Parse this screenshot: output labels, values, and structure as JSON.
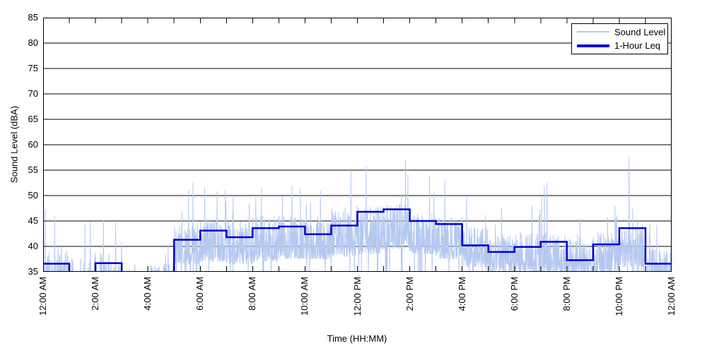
{
  "colors": {
    "trace": "#b5c8f0",
    "leq": "#0000d9",
    "axis": "#000000",
    "background": "#ffffff"
  },
  "legend": {
    "items": [
      {
        "label": "Sound Level",
        "swatch": "thin-light-blue-line"
      },
      {
        "label": "1-Hour Leq",
        "swatch": "thick-blue-line"
      }
    ]
  },
  "chart_data": {
    "type": "line",
    "title": "",
    "xlabel": "Time (HH:MM)",
    "ylabel": "Sound Level (dBA)",
    "ylim": [
      35,
      85
    ],
    "y_ticks": [
      35,
      40,
      45,
      50,
      55,
      60,
      65,
      70,
      75,
      80,
      85
    ],
    "x_range_hours": [
      0,
      24
    ],
    "x_minor_tick_every_hours": 1,
    "x_tick_hours": [
      0,
      2,
      4,
      6,
      8,
      10,
      12,
      14,
      16,
      18,
      20,
      22,
      24
    ],
    "x_tick_labels": [
      "12:00 AM",
      "2:00 AM",
      "4:00 AM",
      "6:00 AM",
      "8:00 AM",
      "10:00 AM",
      "12:00 PM",
      "2:00 PM",
      "4:00 PM",
      "6:00 PM",
      "8:00 PM",
      "10:00 PM",
      "12:00 AM"
    ],
    "grid": "horizontal-solid",
    "legend_position": "top-right",
    "series": [
      {
        "name": "Sound Level",
        "style": "noisy-1-minute-trace",
        "seed": 11,
        "note": "per-hour envelope read from plot; gaps (values below 35 dBA axis) in early-morning hours",
        "hour_density": [
          0.4,
          0.12,
          0.3,
          0.05,
          0.2,
          0.85,
          0.97,
          0.97,
          0.97,
          0.97,
          0.97,
          0.97,
          0.97,
          0.97,
          0.97,
          0.97,
          0.96,
          0.95,
          0.95,
          0.95,
          0.92,
          0.92,
          0.9,
          0.45
        ],
        "hour_low_dBA": [
          35,
          35,
          35,
          35,
          35,
          36.5,
          37,
          36.5,
          37,
          37.5,
          37.5,
          38,
          38.5,
          39.5,
          38.5,
          37.5,
          36,
          35,
          35,
          35,
          35,
          35,
          36,
          35
        ],
        "hour_high_dBA": [
          40,
          38,
          39,
          36,
          37,
          44,
          45.5,
          45,
          46,
          46,
          45.5,
          47,
          48,
          48.5,
          47,
          46,
          44,
          42.5,
          43,
          43,
          41.5,
          43,
          45,
          40
        ],
        "hour_peak_dBA": [
          47.3,
          44.8,
          45.3,
          36.5,
          40.5,
          52.5,
          51.5,
          50,
          51.5,
          52,
          51,
          55,
          55.8,
          57,
          54,
          53,
          50,
          47.5,
          48,
          52.5,
          45.5,
          48,
          57.6,
          44.5
        ],
        "hour_peak_minute": [
          4,
          48,
          18,
          30,
          46,
          43,
          10,
          15,
          20,
          30,
          35,
          45,
          20,
          50,
          45,
          20,
          10,
          30,
          40,
          14,
          30,
          50,
          22,
          10
        ]
      },
      {
        "name": "1-Hour Leq",
        "style": "hourly-step",
        "note": "null = Leq below 35 dBA axis (line clipped at plot bottom)",
        "values": [
          36.6,
          null,
          36.7,
          null,
          null,
          41.3,
          43.1,
          41.8,
          43.6,
          43.9,
          42.4,
          44.1,
          46.8,
          47.3,
          45.0,
          44.4,
          40.2,
          38.9,
          39.9,
          40.9,
          37.3,
          40.4,
          43.6,
          36.6
        ]
      }
    ]
  }
}
